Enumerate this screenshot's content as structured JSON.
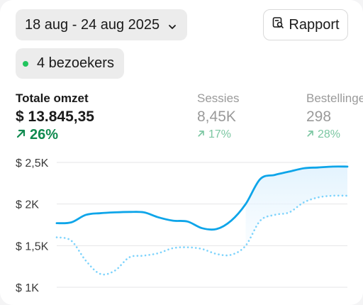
{
  "date_range": {
    "label": "18 aug - 24 aug 2025",
    "icon": "chevron-down-icon"
  },
  "report_button": {
    "label": "Rapport",
    "icon": "report-icon"
  },
  "visitors": {
    "label": "4 bezoekers",
    "dot_color": "#22c55e"
  },
  "metrics": [
    {
      "label": "Totale omzet",
      "value": "$ 13.845,35",
      "change": "26%"
    },
    {
      "label": "Sessies",
      "value": "8,45K",
      "change": "17%"
    },
    {
      "label": "Bestellingen",
      "value": "298",
      "change": "28%"
    }
  ],
  "colors": {
    "primary_line": "#0ea5e9",
    "comparison_line": "#7dd3fc",
    "positive": "#0f8a4f"
  },
  "chart_data": {
    "type": "line",
    "y_tick_labels": [
      "$ 2,5K",
      "$ 2K",
      "$ 1,5K",
      "$ 1K"
    ],
    "ylim": [
      1000,
      2500
    ],
    "grid": true,
    "series": [
      {
        "style": "solid",
        "x": [
          0,
          1,
          2,
          3,
          4,
          5,
          6,
          7,
          8,
          9,
          10,
          11,
          12,
          13,
          14,
          15,
          16,
          17,
          18,
          19,
          20
        ],
        "values": [
          1770,
          1780,
          1870,
          1890,
          1900,
          1905,
          1900,
          1840,
          1800,
          1790,
          1710,
          1700,
          1800,
          2000,
          2300,
          2350,
          2390,
          2430,
          2440,
          2450,
          2450
        ]
      },
      {
        "style": "dotted",
        "x": [
          0,
          1,
          2,
          3,
          4,
          5,
          6,
          7,
          8,
          9,
          10,
          11,
          12,
          13,
          14,
          15,
          16,
          17,
          18,
          19,
          20
        ],
        "values": [
          1600,
          1560,
          1320,
          1160,
          1200,
          1360,
          1380,
          1410,
          1470,
          1480,
          1460,
          1400,
          1390,
          1500,
          1800,
          1870,
          1900,
          2020,
          2080,
          2100,
          2100
        ]
      }
    ]
  }
}
